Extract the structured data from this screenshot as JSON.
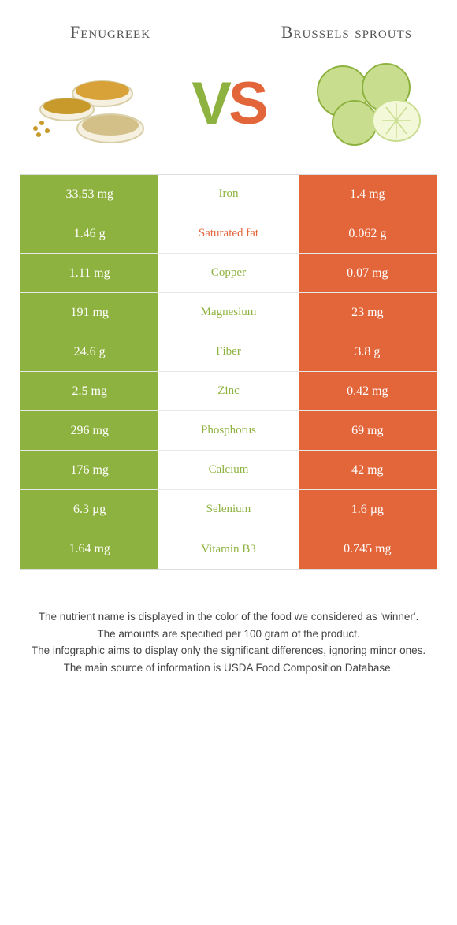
{
  "colors": {
    "left_food": "#8eb23f",
    "right_food": "#e2663a",
    "row_border": "#e8e8e8",
    "table_border": "#dddddd",
    "background": "#ffffff",
    "text": "#333333",
    "footnote_text": "#444444"
  },
  "header": {
    "left_title": "Fenugreek",
    "right_title": "Brussels sprouts",
    "vs_v": "V",
    "vs_s": "S"
  },
  "rows": [
    {
      "label": "Iron",
      "left": "33.53 mg",
      "right": "1.4 mg",
      "winner": "left"
    },
    {
      "label": "Saturated fat",
      "left": "1.46 g",
      "right": "0.062 g",
      "winner": "right"
    },
    {
      "label": "Copper",
      "left": "1.11 mg",
      "right": "0.07 mg",
      "winner": "left"
    },
    {
      "label": "Magnesium",
      "left": "191 mg",
      "right": "23 mg",
      "winner": "left"
    },
    {
      "label": "Fiber",
      "left": "24.6 g",
      "right": "3.8 g",
      "winner": "left"
    },
    {
      "label": "Zinc",
      "left": "2.5 mg",
      "right": "0.42 mg",
      "winner": "left"
    },
    {
      "label": "Phosphorus",
      "left": "296 mg",
      "right": "69 mg",
      "winner": "left"
    },
    {
      "label": "Calcium",
      "left": "176 mg",
      "right": "42 mg",
      "winner": "left"
    },
    {
      "label": "Selenium",
      "left": "6.3 µg",
      "right": "1.6 µg",
      "winner": "left"
    },
    {
      "label": "Vitamin B3",
      "left": "1.64 mg",
      "right": "0.745 mg",
      "winner": "left"
    }
  ],
  "footnotes": [
    "The nutrient name is displayed in the color of the food we considered as 'winner'.",
    "The amounts are specified per 100 gram of the product.",
    "The infographic aims to display only the significant differences, ignoring minor ones.",
    "The main source of information is USDA Food Composition Database."
  ]
}
